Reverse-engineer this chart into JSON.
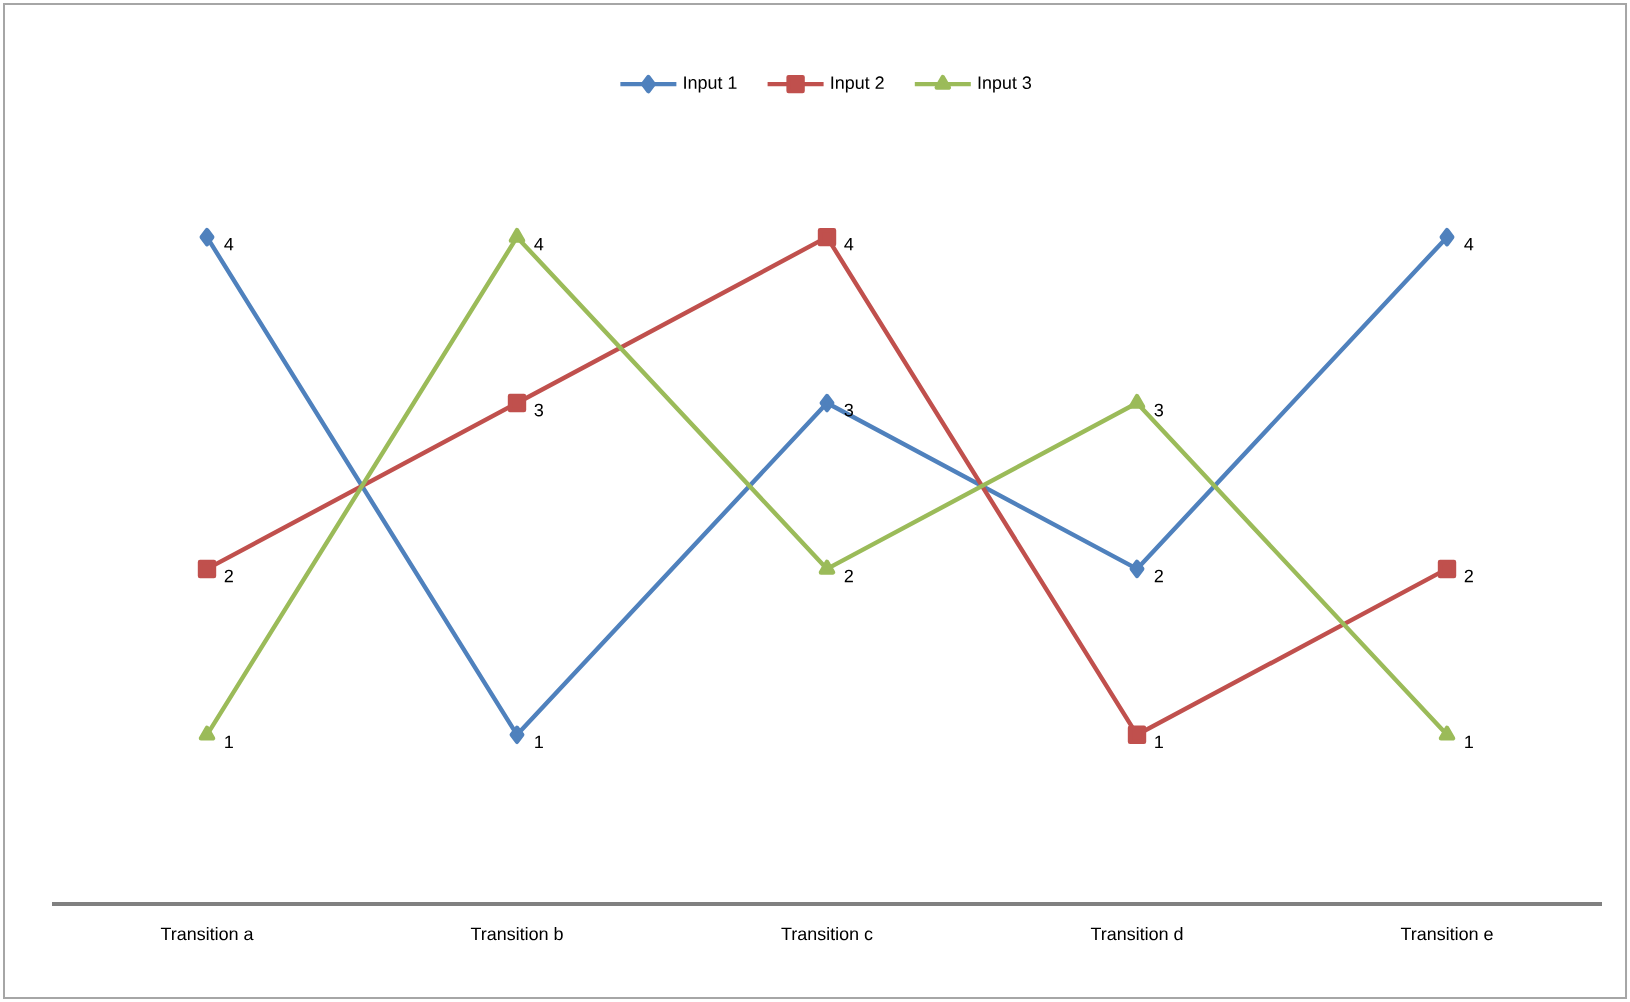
{
  "chart_data": {
    "type": "line",
    "categories": [
      "Transition a",
      "Transition b",
      "Transition c",
      "Transition d",
      "Transition e"
    ],
    "series": [
      {
        "name": "Input 1",
        "color": "#4f81bd",
        "values": [
          4,
          1,
          3,
          2,
          4
        ],
        "marker": "diamond"
      },
      {
        "name": "Input 2",
        "color": "#c0504d",
        "values": [
          2,
          3,
          4,
          1,
          2
        ],
        "marker": "square"
      },
      {
        "name": "Input 3",
        "color": "#9bbb59",
        "values": [
          1,
          4,
          2,
          3,
          1
        ],
        "marker": "triangle"
      }
    ],
    "data_labels": true,
    "legend": "top",
    "grid": false,
    "tick_labels": "x"
  }
}
